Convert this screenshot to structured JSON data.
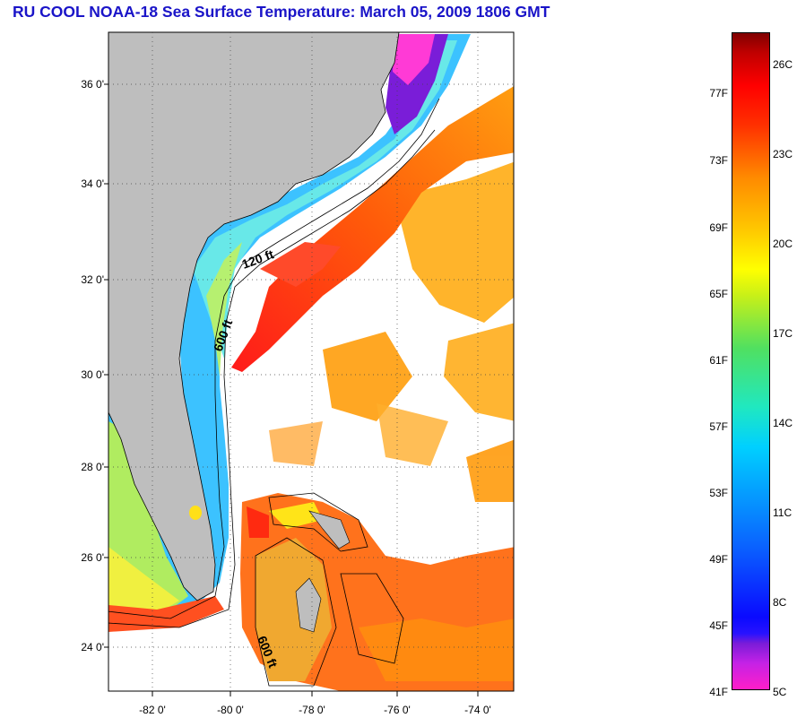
{
  "title": "RU COOL  NOAA-18  Sea Surface Temperature:  March 05, 2009 1806 GMT",
  "map": {
    "lat_labels": [
      "36 0'",
      "34 0'",
      "32 0'",
      "30 0'",
      "28 0'",
      "26 0'",
      "24 0'"
    ],
    "lon_labels": [
      "-82 0'",
      "-80 0'",
      "-78 0'",
      "-76 0'",
      "-74 0'"
    ],
    "isobath_labels": [
      "120 ft",
      "600 ft",
      "600 ft"
    ],
    "colors": {
      "land": "#bebebe",
      "ocean_nodata": "#ffffff",
      "gulfstream": "#ff2a1a"
    }
  },
  "colorbar": {
    "fahrenheit": [
      "77F",
      "73F",
      "69F",
      "65F",
      "61F",
      "57F",
      "53F",
      "49F",
      "45F",
      "41F"
    ],
    "celsius": [
      "26C",
      "23C",
      "20C",
      "17C",
      "14C",
      "11C",
      "8C",
      "5C"
    ]
  }
}
